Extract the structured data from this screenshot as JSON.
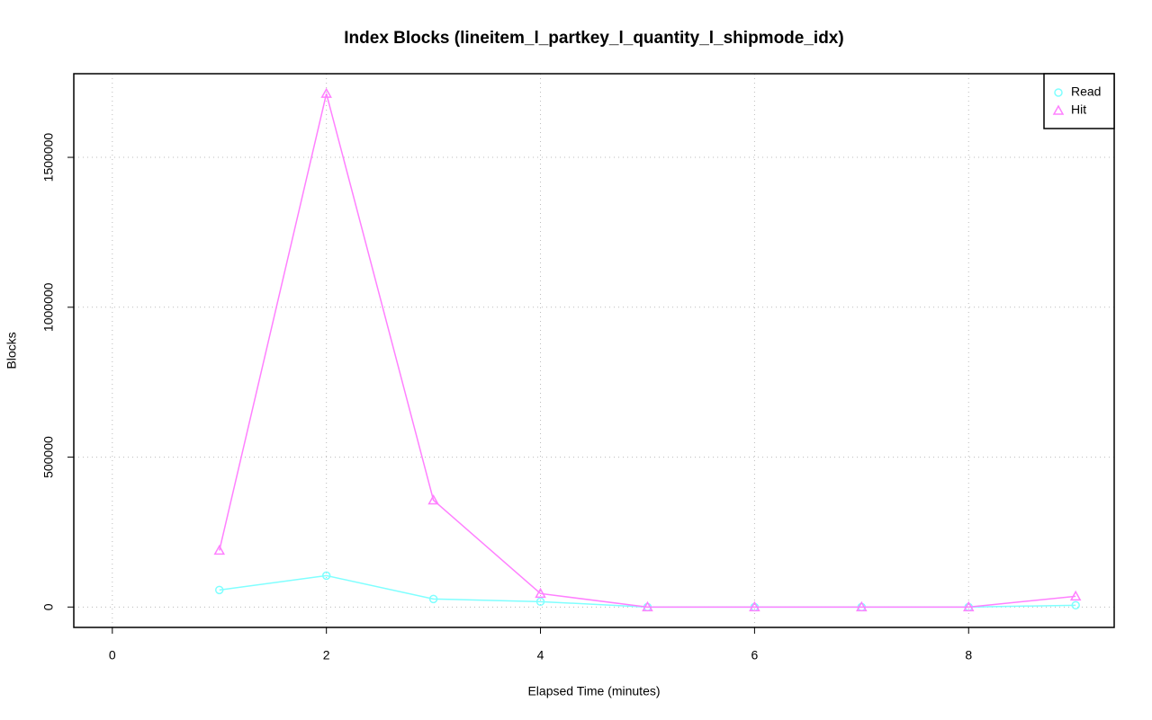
{
  "chart_data": {
    "type": "line",
    "title": "Index Blocks (lineitem_l_partkey_l_quantity_l_shipmode_idx)",
    "x_label": "Elapsed Time (minutes)",
    "y_label": "Blocks",
    "x": [
      1,
      2,
      3,
      4,
      5,
      6,
      7,
      8,
      9
    ],
    "series": [
      {
        "name": "Read",
        "color": "#80ffff",
        "marker": "circle",
        "values": [
          56900,
          104800,
          26900,
          18000,
          0,
          0,
          0,
          0,
          6000
        ]
      },
      {
        "name": "Hit",
        "color": "#ff80ff",
        "marker": "triangle",
        "values": [
          188600,
          1712500,
          356300,
          44900,
          0,
          0,
          0,
          0,
          35900
        ]
      }
    ],
    "xlim": [
      -0.36,
      9.36
    ],
    "ylim": [
      -68000,
      1779000
    ],
    "xticks": [
      0,
      2,
      4,
      6,
      8
    ],
    "yticks": [
      0,
      500000,
      1000000,
      1500000
    ],
    "grid": true,
    "legend": "top-right"
  }
}
